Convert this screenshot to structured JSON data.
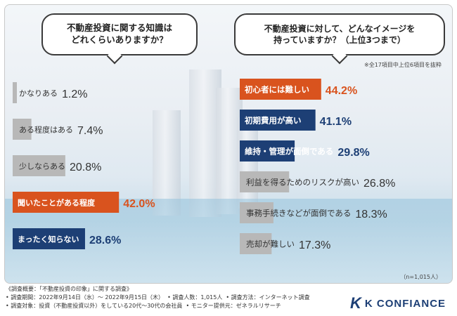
{
  "colors": {
    "gray": "#b8b8b8",
    "orange": "#d9531e",
    "navy": "#1d3f75",
    "text_dark": "#333333",
    "text_orange": "#d9531e",
    "text_navy": "#1d3f75"
  },
  "chart_data": [
    {
      "type": "bar",
      "title": "不動産投資に関する知識はどれくらいありますか？",
      "categories": [
        "かなりある",
        "ある程度はある",
        "少しならある",
        "聞いたことがある程度",
        "まったく知らない"
      ],
      "values": [
        1.2,
        7.4,
        20.8,
        42.0,
        28.6
      ],
      "value_labels": [
        "1.2%",
        "7.4%",
        "20.8%",
        "42.0%",
        "28.6%"
      ],
      "highlight": [
        "gray",
        "gray",
        "gray",
        "orange",
        "navy"
      ],
      "xlim": [
        0,
        100
      ],
      "unit": "%"
    },
    {
      "type": "bar",
      "title": "不動産投資に対して、どんなイメージを持っていますか？（上位3つまで）",
      "note": "※全17項目中上位6項目を抜粋",
      "categories": [
        "初心者には難しい",
        "初期費用が高い",
        "維持・管理が面倒である",
        "利益を得るためのリスクが高い",
        "事務手続きなどが面倒である",
        "売却が難しい"
      ],
      "values": [
        44.2,
        41.1,
        29.8,
        26.8,
        18.3,
        17.3
      ],
      "value_labels": [
        "44.2%",
        "41.1%",
        "29.8%",
        "26.8%",
        "18.3%",
        "17.3%"
      ],
      "highlight": [
        "orange",
        "navy",
        "navy",
        "gray",
        "gray",
        "gray"
      ],
      "xlim": [
        0,
        100
      ],
      "unit": "%",
      "sample": "（n=1,015人）"
    }
  ],
  "bubbles": {
    "left": [
      "不動産投資に関する知識は",
      "どれくらいありますか？"
    ],
    "right": [
      "不動産投資に対して、どんなイメージを",
      "持っていますか？（上位3つまで）"
    ]
  },
  "footer": {
    "line1": "《調査概要：「不動産投資の印象」に関する調査》",
    "date": "• 調査期間：2022年9月14日（水）～ 2022年9月15日（木）",
    "people": "• 調査人数：1,015人",
    "method": "• 調査方法：インターネット調査",
    "target": "• 調査対象：投資（不動産投資以外）をしている20代～30代の会社員",
    "provider": "• モニター提供元：ゼネラルリサーチ"
  },
  "logo": {
    "mark": "K",
    "text": "K CONFIANCE"
  }
}
